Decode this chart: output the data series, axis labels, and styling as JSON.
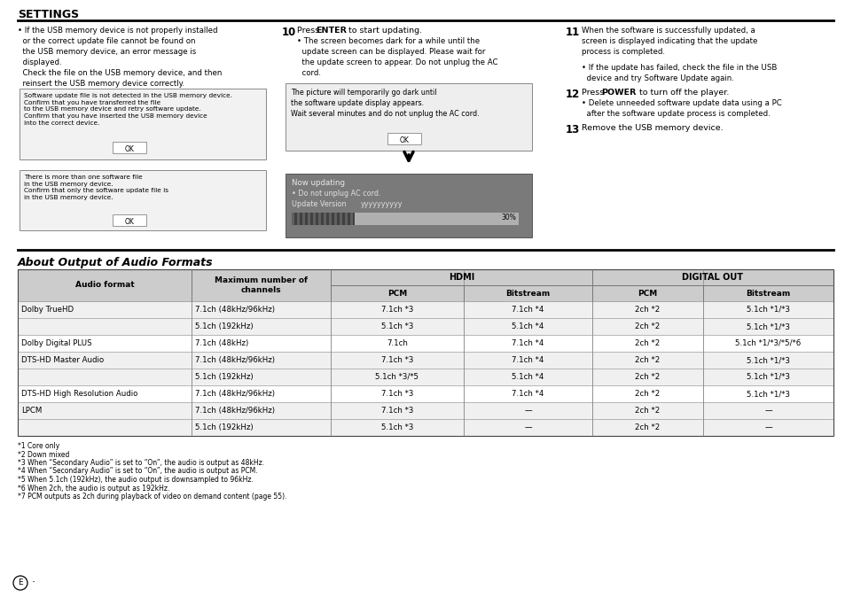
{
  "title": "SETTINGS",
  "section2_title": "About Output of Audio Formats",
  "bg_color": "#ffffff",
  "table_rows": [
    [
      "Dolby TrueHD",
      "7.1ch (48kHz/96kHz)",
      "7.1ch *3",
      "7.1ch *4",
      "2ch *2",
      "5.1ch *1/*3"
    ],
    [
      "",
      "5.1ch (192kHz)",
      "5.1ch *3",
      "5.1ch *4",
      "2ch *2",
      "5.1ch *1/*3"
    ],
    [
      "Dolby Digital PLUS",
      "7.1ch (48kHz)",
      "7.1ch",
      "7.1ch *4",
      "2ch *2",
      "5.1ch *1/*3/*5/*6"
    ],
    [
      "DTS-HD Master Audio",
      "7.1ch (48kHz/96kHz)",
      "7.1ch *3",
      "7.1ch *4",
      "2ch *2",
      "5.1ch *1/*3"
    ],
    [
      "",
      "5.1ch (192kHz)",
      "5.1ch *3/*5",
      "5.1ch *4",
      "2ch *2",
      "5.1ch *1/*3"
    ],
    [
      "DTS-HD High Resolution Audio",
      "7.1ch (48kHz/96kHz)",
      "7.1ch *3",
      "7.1ch *4",
      "2ch *2",
      "5.1ch *1/*3"
    ],
    [
      "LPCM",
      "7.1ch (48kHz/96kHz)",
      "7.1ch *3",
      "—",
      "2ch *2",
      "—"
    ],
    [
      "",
      "5.1ch (192kHz)",
      "5.1ch *3",
      "—",
      "2ch *2",
      "—"
    ]
  ],
  "footnotes": [
    "*1 Core only",
    "*2 Down mixed",
    "*3 When “Secondary Audio” is set to “On”, the audio is output as 48kHz.",
    "*4 When “Secondary Audio” is set to “On”, the audio is output as PCM.",
    "*5 When 5.1ch (192kHz), the audio output is downsampled to 96kHz.",
    "*6 When 2ch, the audio is output as 192kHz.",
    "*7 PCM outputs as 2ch during playback of video on demand content (page 55)."
  ]
}
